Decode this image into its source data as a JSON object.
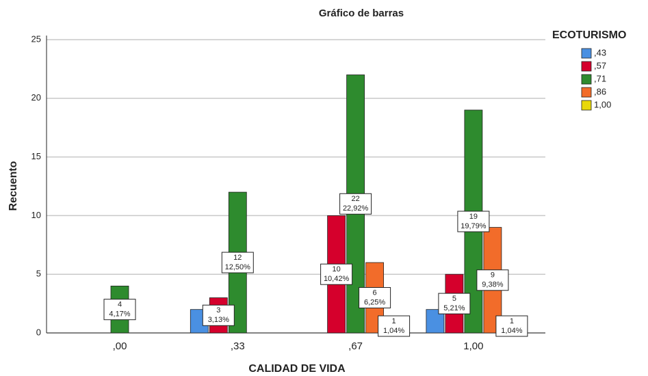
{
  "chart_data": {
    "type": "bar",
    "title": "Gráfico de barras",
    "x_label": "CALIDAD DE VIDA",
    "y_label": "Recuento",
    "legend_title": "ECOTURISMO",
    "categories": [
      ",00",
      ",33",
      ",67",
      "1,00"
    ],
    "series": [
      {
        "name": ",43",
        "color": "#4a90e2",
        "values": [
          0,
          2,
          0,
          2
        ],
        "value_labels": [
          null,
          null,
          null,
          null
        ]
      },
      {
        "name": ",57",
        "color": "#d5002c",
        "values": [
          0,
          3,
          10,
          5
        ],
        "value_labels": [
          null,
          "3,13%",
          "10,42%",
          "5,21%"
        ]
      },
      {
        "name": ",71",
        "color": "#2e8b2e",
        "values": [
          4,
          12,
          22,
          19
        ],
        "value_labels": [
          "4,17%",
          "12,50%",
          "22,92%",
          "19,79%"
        ]
      },
      {
        "name": ",86",
        "color": "#f26c2a",
        "values": [
          0,
          0,
          6,
          9
        ],
        "value_labels": [
          null,
          null,
          "6,25%",
          "9,38%"
        ]
      },
      {
        "name": "1,00",
        "color": "#e8d80a",
        "values": [
          0,
          0,
          1,
          1
        ],
        "value_labels": [
          null,
          null,
          "1,04%",
          "1,04%"
        ]
      }
    ],
    "ylim": [
      0,
      25
    ],
    "yticks": [
      0,
      5,
      10,
      15,
      20,
      25
    ],
    "grid": true,
    "legend": "right"
  }
}
